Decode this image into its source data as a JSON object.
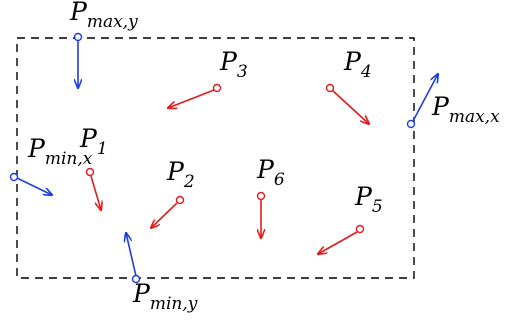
{
  "colors": {
    "blue": "#1f3fd6",
    "red": "#e11b1b",
    "box": "#000000"
  },
  "points": [
    {
      "id": "p1",
      "label": {
        "base": "P",
        "sub": "1"
      },
      "color": "red"
    },
    {
      "id": "p2",
      "label": {
        "base": "P",
        "sub": "2"
      },
      "color": "red"
    },
    {
      "id": "p3",
      "label": {
        "base": "P",
        "sub": "3"
      },
      "color": "red"
    },
    {
      "id": "p4",
      "label": {
        "base": "P",
        "sub": "4"
      },
      "color": "red"
    },
    {
      "id": "p5",
      "label": {
        "base": "P",
        "sub": "5"
      },
      "color": "red"
    },
    {
      "id": "p6",
      "label": {
        "base": "P",
        "sub": "6"
      },
      "color": "red"
    },
    {
      "id": "pmaxy",
      "label": {
        "base": "P",
        "sub": "max,y"
      },
      "color": "blue"
    },
    {
      "id": "pmaxx",
      "label": {
        "base": "P",
        "sub": "max,x"
      },
      "color": "blue"
    },
    {
      "id": "pminx",
      "label": {
        "base": "P",
        "sub": "min,x"
      },
      "color": "blue"
    },
    {
      "id": "pminy",
      "label": {
        "base": "P",
        "sub": "min,y"
      },
      "color": "blue"
    }
  ]
}
